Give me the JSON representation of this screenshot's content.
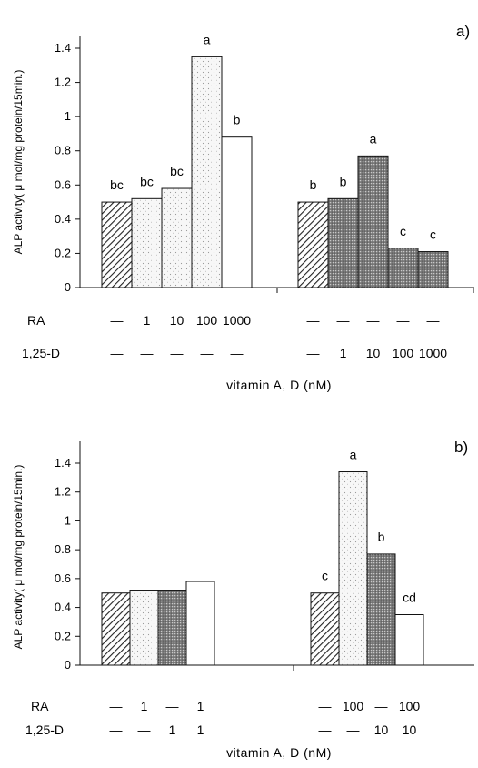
{
  "chart_data": [
    {
      "type": "bar",
      "panel_label": "a)",
      "ylabel": "ALP activity( μ mol/mg protein/15min.)",
      "xlabel": "vitamin A, D (nM)",
      "ylim": [
        0,
        1.4
      ],
      "yticks": [
        "0",
        "0.2",
        "0.4",
        "0.6",
        "0.8",
        "1",
        "1.2",
        "1.4"
      ],
      "row_labels": [
        "RA",
        "1,25-D"
      ],
      "groups": [
        {
          "bars": [
            {
              "value": 0.5,
              "sig": "bc",
              "fill": "hatch",
              "ra": "—",
              "d": "—"
            },
            {
              "value": 0.52,
              "sig": "bc",
              "fill": "dots",
              "ra": "1",
              "d": "—"
            },
            {
              "value": 0.58,
              "sig": "bc",
              "fill": "dots",
              "ra": "10",
              "d": "—"
            },
            {
              "value": 1.35,
              "sig": "a",
              "fill": "dots",
              "ra": "100",
              "d": "—"
            },
            {
              "value": 0.88,
              "sig": "b",
              "fill": "white",
              "ra": "1000",
              "d": "—"
            }
          ]
        },
        {
          "bars": [
            {
              "value": 0.5,
              "sig": "b",
              "fill": "hatch",
              "ra": "—",
              "d": "—"
            },
            {
              "value": 0.52,
              "sig": "b",
              "fill": "dense",
              "ra": "—",
              "d": "1"
            },
            {
              "value": 0.77,
              "sig": "a",
              "fill": "dense",
              "ra": "—",
              "d": "10"
            },
            {
              "value": 0.23,
              "sig": "c",
              "fill": "dense",
              "ra": "—",
              "d": "100"
            },
            {
              "value": 0.21,
              "sig": "c",
              "fill": "dense",
              "ra": "—",
              "d": "1000"
            }
          ]
        }
      ]
    },
    {
      "type": "bar",
      "panel_label": "b)",
      "ylabel": "ALP activity( μ mol/mg protein/15min.)",
      "xlabel": "vitamin A, D (nM)",
      "ylim": [
        0,
        1.4
      ],
      "yticks": [
        "0",
        "0.2",
        "0.4",
        "0.6",
        "0.8",
        "1",
        "1.2",
        "1.4"
      ],
      "row_labels": [
        "RA",
        "1,25-D"
      ],
      "groups": [
        {
          "bars": [
            {
              "value": 0.5,
              "sig": "",
              "fill": "hatch",
              "ra": "—",
              "d": "—"
            },
            {
              "value": 0.52,
              "sig": "",
              "fill": "dots",
              "ra": "1",
              "d": "—"
            },
            {
              "value": 0.52,
              "sig": "",
              "fill": "dense",
              "ra": "—",
              "d": "1"
            },
            {
              "value": 0.58,
              "sig": "",
              "fill": "white",
              "ra": "1",
              "d": "1"
            }
          ]
        },
        {
          "bars": [
            {
              "value": 0.5,
              "sig": "c",
              "fill": "hatch",
              "ra": "—",
              "d": "—"
            },
            {
              "value": 1.34,
              "sig": "a",
              "fill": "dots",
              "ra": "100",
              "d": "—"
            },
            {
              "value": 0.77,
              "sig": "b",
              "fill": "dense",
              "ra": "—",
              "d": "10"
            },
            {
              "value": 0.35,
              "sig": "cd",
              "fill": "white",
              "ra": "100",
              "d": "10"
            }
          ]
        }
      ]
    }
  ]
}
